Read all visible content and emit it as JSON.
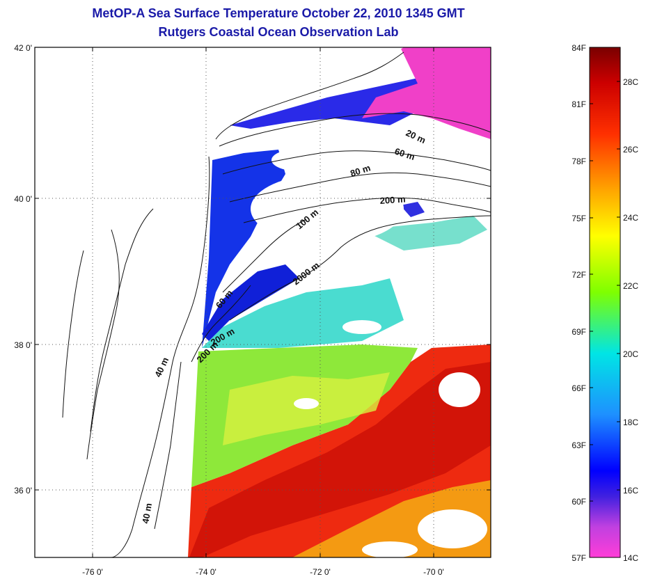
{
  "title": {
    "line1": "MetOP-A Sea Surface Temperature October 22, 2010 1345 GMT",
    "line2": "Rutgers Coastal Ocean Observation Lab"
  },
  "map": {
    "lat_labels": [
      "42 0'",
      "40 0'",
      "38 0'",
      "36 0'"
    ],
    "lon_labels": [
      "-76 0'",
      "-74 0'",
      "-72 0'",
      "-70 0'"
    ],
    "grid": "dotted",
    "contour_labels": [
      "20 m",
      "60 m",
      "80 m",
      "200 m",
      "100 m",
      "2000 m",
      "60 m",
      "200 m",
      "200 m",
      "40 m",
      "40 m"
    ]
  },
  "colorbar": {
    "fahrenheit_labels": [
      "84F",
      "81F",
      "78F",
      "75F",
      "72F",
      "69F",
      "66F",
      "63F",
      "60F",
      "57F"
    ],
    "celsius_labels": [
      "28C",
      "26C",
      "24C",
      "22C",
      "20C",
      "18C",
      "16C",
      "14C"
    ],
    "colors": [
      "#ff3dd8",
      "#8a2be2",
      "#0000ff",
      "#1e90ff",
      "#00e5e5",
      "#7fff00",
      "#ffff00",
      "#ffa500",
      "#ff3000",
      "#cc0000",
      "#7a0000"
    ]
  }
}
